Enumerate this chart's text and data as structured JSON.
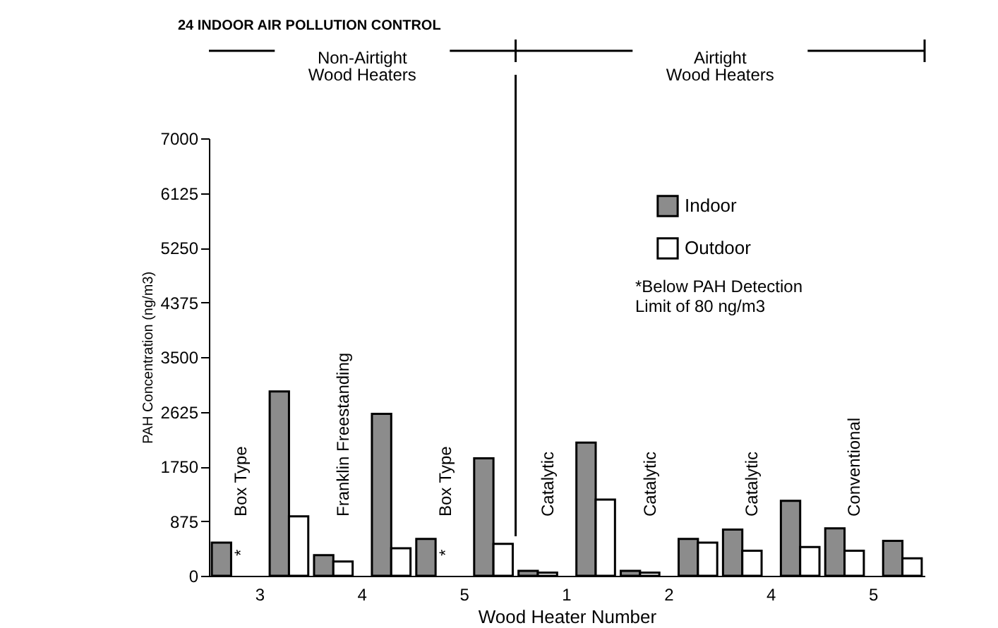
{
  "chart_data": {
    "type": "bar",
    "title": "24 INDOOR AIR POLLUTION CONTROL",
    "xlabel": "Wood Heater Number",
    "ylabel": "PAH Concentration (ng/m3)",
    "categories": [
      "3",
      "4",
      "5",
      "1",
      "2",
      "4",
      "5"
    ],
    "series": [
      {
        "name": "Indoor",
        "color": "#8c8c8c",
        "values": [
          530,
          330,
          590,
          80,
          80,
          740,
          760
        ]
      },
      {
        "name": "Outdoor",
        "color": "#ffffff",
        "values": [
          null,
          230,
          null,
          50,
          50,
          400,
          400
        ]
      },
      {
        "color": "#8c8c8c",
        "values": [
          2950,
          2590,
          1880,
          2130,
          590,
          1200,
          560
        ]
      },
      {
        "color": "#ffffff",
        "values": [
          950,
          440,
          510,
          1220,
          530,
          460,
          280
        ]
      }
    ],
    "ylim": [
      0,
      7000
    ],
    "yticks": [
      0,
      875,
      1750,
      2625,
      3500,
      4375,
      5250,
      6125,
      7000
    ],
    "grid": false,
    "legend": "top right",
    "annotations": [
      "*Below PAH Detection\nLimit of 80 ng/m3",
      "Non-Airtight\nWood Heaters",
      "Airtight\nWood Heaters",
      "Box Type",
      "Franklin Freestanding",
      "Box Type",
      "Catalytic",
      "Catalytic",
      "Catalytic",
      "Conventional",
      "*",
      "*"
    ]
  }
}
